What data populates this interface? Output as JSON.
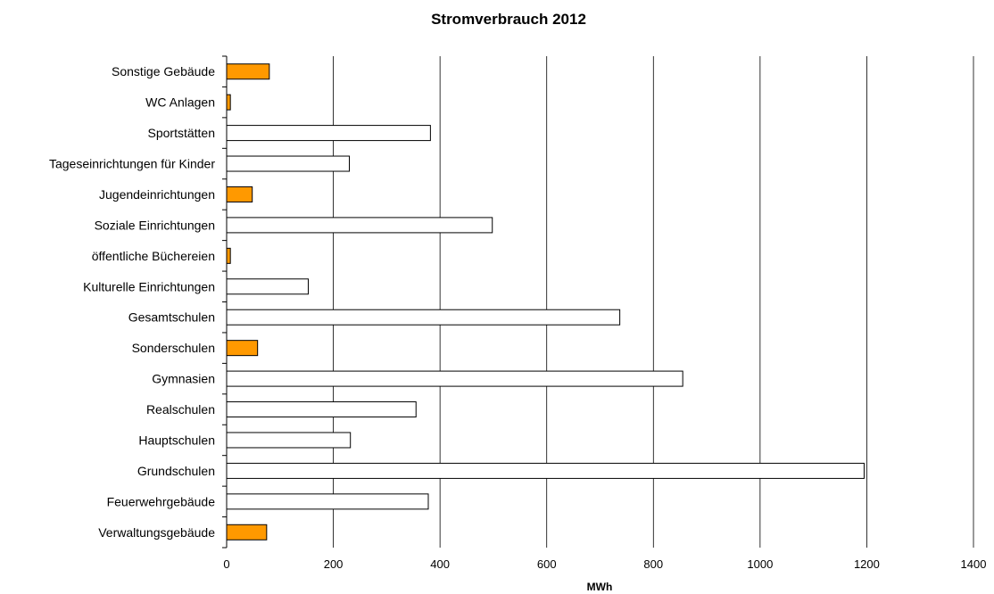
{
  "chart_data": {
    "type": "bar",
    "orientation": "horizontal",
    "title": "Stromverbrauch 2012",
    "xlabel": "MWh",
    "ylabel": "",
    "xlim": [
      0,
      1400
    ],
    "xticks": [
      0,
      200,
      400,
      600,
      800,
      1000,
      1200,
      1400
    ],
    "grid": "vertical",
    "legend": "none",
    "categories": [
      "Sonstige Gebäude",
      "WC Anlagen",
      "Sportstätten",
      "Tageseinrichtungen für Kinder",
      "Jugendeinrichtungen",
      "Soziale Einrichtungen",
      "öffentliche Büchereien",
      "Kulturelle Einrichtungen",
      "Gesamtschulen",
      "Sonderschulen",
      "Gymnasien",
      "Realschulen",
      "Hauptschulen",
      "Grundschulen",
      "Feuerwehrgebäude",
      "Verwaltungsgebäude"
    ],
    "values": [
      80,
      7,
      382,
      230,
      48,
      498,
      7,
      153,
      737,
      58,
      855,
      355,
      232,
      1195,
      378,
      75
    ],
    "highlighted": [
      true,
      true,
      false,
      false,
      true,
      false,
      true,
      false,
      false,
      true,
      false,
      false,
      false,
      false,
      false,
      true
    ],
    "colors": {
      "highlight": "#FF9900",
      "default": "#FFFFFF",
      "stroke": "#000000",
      "grid": "#000000"
    }
  }
}
